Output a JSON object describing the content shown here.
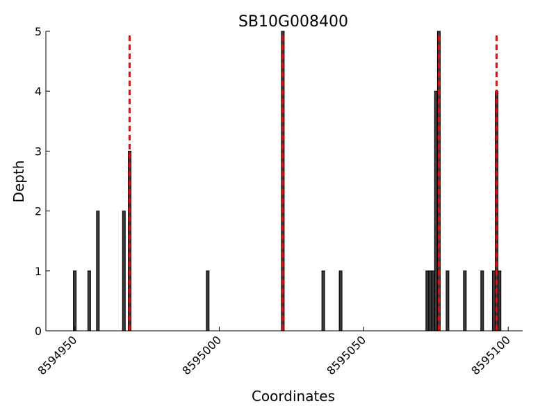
{
  "chart_data": {
    "type": "bar",
    "title": "SB10G008400",
    "xlabel": "Coordinates",
    "ylabel": "Depth",
    "xlim": [
      8594940,
      8595105
    ],
    "ylim": [
      0,
      5
    ],
    "xticks": [
      8594950,
      8595000,
      8595050,
      8595100
    ],
    "yticks": [
      0,
      1,
      2,
      3,
      4,
      5
    ],
    "grid": false,
    "bar_color": "#3a3a3a",
    "marker_color": "#ff0000",
    "bars": [
      {
        "x": 8594950,
        "y": 1
      },
      {
        "x": 8594955,
        "y": 1
      },
      {
        "x": 8594958,
        "y": 2
      },
      {
        "x": 8594967,
        "y": 2
      },
      {
        "x": 8594969,
        "y": 3
      },
      {
        "x": 8594996,
        "y": 1
      },
      {
        "x": 8595022,
        "y": 5
      },
      {
        "x": 8595036,
        "y": 1
      },
      {
        "x": 8595042,
        "y": 1
      },
      {
        "x": 8595072,
        "y": 1
      },
      {
        "x": 8595073,
        "y": 1
      },
      {
        "x": 8595074,
        "y": 1
      },
      {
        "x": 8595075,
        "y": 4
      },
      {
        "x": 8595076,
        "y": 5
      },
      {
        "x": 8595079,
        "y": 1
      },
      {
        "x": 8595085,
        "y": 1
      },
      {
        "x": 8595091,
        "y": 1
      },
      {
        "x": 8595095,
        "y": 1
      },
      {
        "x": 8595096,
        "y": 4
      },
      {
        "x": 8595097,
        "y": 1
      }
    ],
    "marker_lines_x": [
      8594969,
      8595022,
      8595076,
      8595096
    ]
  }
}
